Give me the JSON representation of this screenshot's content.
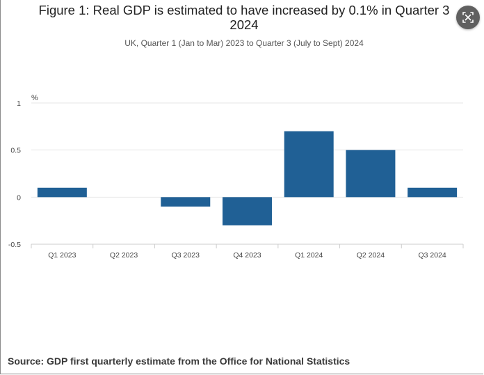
{
  "chart_data": {
    "type": "bar",
    "title": "Figure 1: Real GDP is estimated to have increased by 0.1% in Quarter 3 2024",
    "subtitle": "UK, Quarter 1 (Jan to Mar) 2023 to Quarter 3 (July to Sept) 2024",
    "ylabel": "%",
    "xlabel": "",
    "categories": [
      "Q1 2023",
      "Q2 2023",
      "Q3 2023",
      "Q4 2023",
      "Q1 2024",
      "Q2 2024",
      "Q3 2024"
    ],
    "values": [
      0.1,
      0.0,
      -0.1,
      -0.3,
      0.7,
      0.5,
      0.1
    ],
    "ylim": [
      -0.5,
      1
    ],
    "yticks": [
      1,
      0.5,
      0,
      -0.5
    ],
    "ytick_labels": [
      "1",
      "0.5",
      "0",
      "-0.5"
    ],
    "grid": true,
    "legend": "none",
    "bar_color": "#206095"
  },
  "source": "Source: GDP first quarterly estimate from the Office for National Statistics",
  "colors": {
    "bar": "#206095",
    "grid": "#e6e6e6",
    "button_bg": "#606060"
  },
  "icons": {
    "expand": "expand-icon"
  }
}
